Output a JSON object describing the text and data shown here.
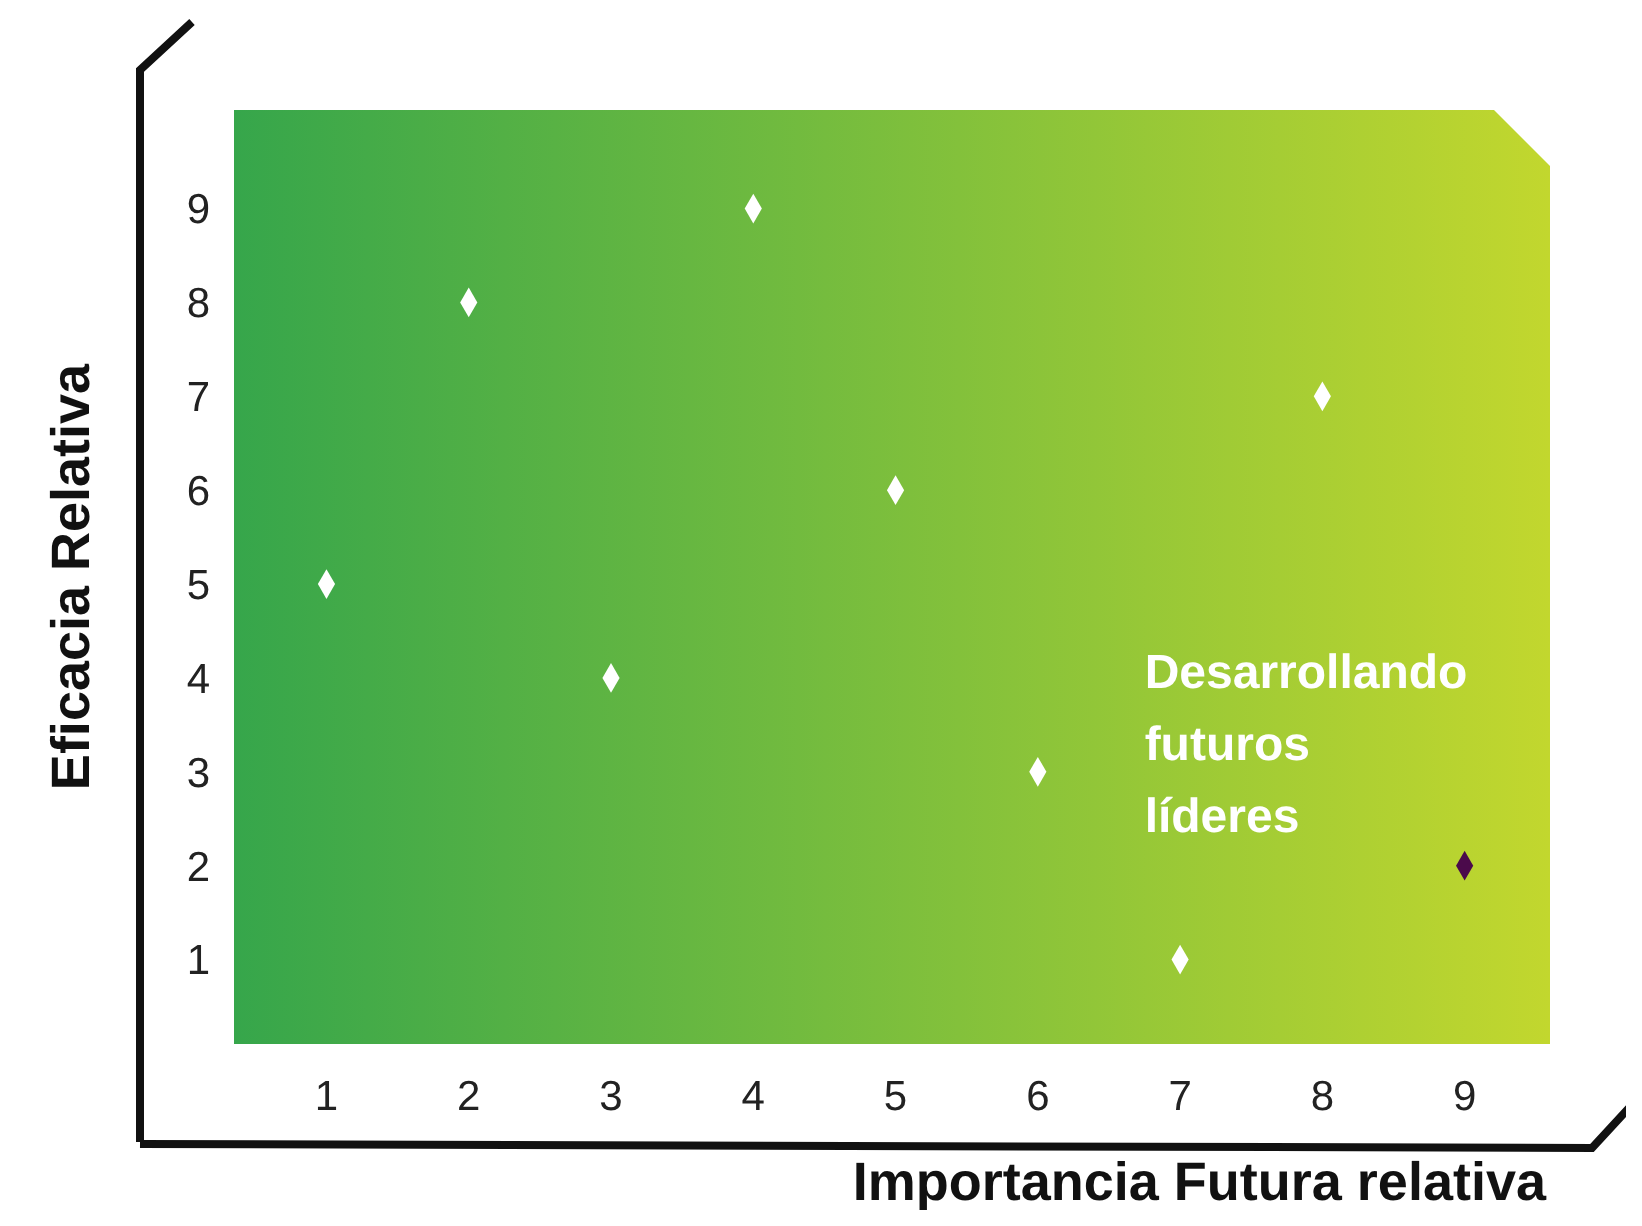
{
  "chart_data": {
    "type": "scatter",
    "xlabel": "Importancia Futura relativa",
    "ylabel": "Eficacia Relativa",
    "xlim": [
      0.35,
      9.6
    ],
    "ylim": [
      0.1,
      10.05
    ],
    "xticks": [
      1,
      2,
      3,
      4,
      5,
      6,
      7,
      8,
      9
    ],
    "yticks": [
      1,
      2,
      3,
      4,
      5,
      6,
      7,
      8,
      9
    ],
    "grid": false,
    "legend": false,
    "marker": "diamond",
    "series": [
      {
        "color": "#ffffff",
        "x": [
          1,
          2,
          3,
          4,
          5,
          6,
          7,
          8
        ],
        "values": [
          5,
          8,
          4,
          9,
          6,
          3,
          1,
          7
        ]
      },
      {
        "color": "#4b0a4b",
        "x": [
          9
        ],
        "values": [
          2
        ]
      }
    ],
    "annotations": [
      {
        "text": "Desarrollando futuros líderes",
        "x": 9,
        "y": 2
      }
    ]
  }
}
